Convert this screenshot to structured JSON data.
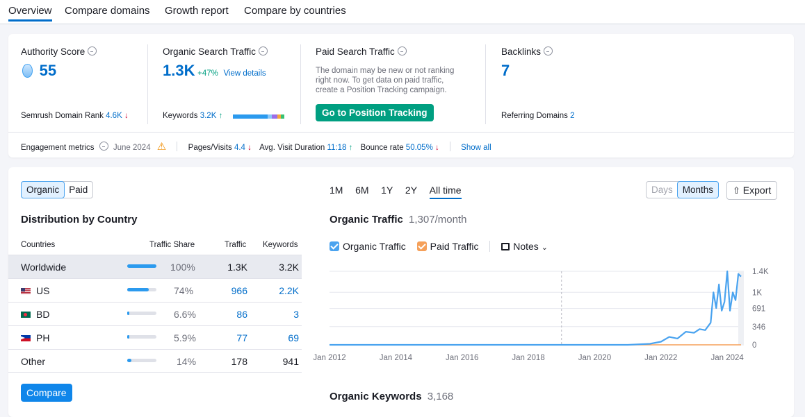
{
  "tabs": [
    "Overview",
    "Compare domains",
    "Growth report",
    "Compare by countries"
  ],
  "authority": {
    "label": "Authority Score",
    "value": "55",
    "rank_label": "Semrush Domain Rank",
    "rank_value": "4.6K",
    "rank_arrow": "↓"
  },
  "organic": {
    "label": "Organic Search Traffic",
    "value": "1.3K",
    "change": "+47%",
    "link": "View details",
    "keywords_label": "Keywords",
    "keywords_value": "3.2K",
    "keywords_arrow": "↑"
  },
  "paid": {
    "label": "Paid Search Traffic",
    "note_lines": [
      "The domain may be new or not ranking",
      "right now. To get data on paid traffic,",
      "create a Position Tracking campaign."
    ],
    "button": "Go to Position Tracking"
  },
  "backlinks": {
    "label": "Backlinks",
    "value": "7",
    "ref_label": "Referring Domains",
    "ref_value": "2"
  },
  "engagement": {
    "label": "Engagement metrics",
    "date": "June 2024",
    "pages_label": "Pages/Visits",
    "pages_value": "4.4",
    "pages_arrow": "↓",
    "duration_label": "Avg. Visit Duration",
    "duration_value": "11:18",
    "duration_arrow": "↑",
    "bounce_label": "Bounce rate",
    "bounce_value": "50.05%",
    "bounce_arrow": "↓",
    "show_all": "Show all"
  },
  "toggle": {
    "organic": "Organic",
    "paid": "Paid"
  },
  "distribution": {
    "title": "Distribution by Country",
    "headers": {
      "countries": "Countries",
      "share": "Traffic Share",
      "traffic": "Traffic",
      "keywords": "Keywords"
    },
    "rows": [
      {
        "name": "Worldwide",
        "share": "100%",
        "share_fraction": 1.0,
        "traffic": "1.3K",
        "keywords": "3.2K"
      },
      {
        "name": "US",
        "share": "74%",
        "share_fraction": 0.74,
        "traffic": "966",
        "keywords": "2.2K"
      },
      {
        "name": "BD",
        "share": "6.6%",
        "share_fraction": 0.066,
        "traffic": "86",
        "keywords": "3"
      },
      {
        "name": "PH",
        "share": "5.9%",
        "share_fraction": 0.059,
        "traffic": "77",
        "keywords": "69"
      },
      {
        "name": "Other",
        "share": "14%",
        "share_fraction": 0.14,
        "traffic": "178",
        "keywords": "941"
      }
    ],
    "compare_button": "Compare"
  },
  "periods": [
    "1M",
    "6M",
    "1Y",
    "2Y",
    "All time"
  ],
  "granularity": {
    "days": "Days",
    "months": "Months"
  },
  "export": "Export",
  "organic_traffic": {
    "title": "Organic Traffic",
    "value": "1,307/month"
  },
  "legend": {
    "organic": "Organic Traffic",
    "paid": "Paid Traffic",
    "notes": "Notes"
  },
  "organic_keywords": {
    "title": "Organic Keywords",
    "value": "3,168"
  },
  "colors": {
    "accent": "#006dca",
    "organic": "#4aa3ef",
    "paid": "#f5a05a",
    "green": "#009f81",
    "blue_btn": "#0f86ea"
  },
  "chart_data": {
    "type": "line",
    "title": "Organic Traffic",
    "x_ticks": [
      "Jan 2012",
      "Jan 2014",
      "Jan 2016",
      "Jan 2018",
      "Jan 2020",
      "Jan 2022",
      "Jan 2024"
    ],
    "y_ticks": [
      "0",
      "346",
      "691",
      "1K",
      "1.4K"
    ],
    "ylim": [
      0,
      1400
    ],
    "series": [
      {
        "name": "Organic Traffic",
        "color": "#4aa3ef",
        "x": [
          "2012-01",
          "2014-01",
          "2016-01",
          "2018-01",
          "2020-01",
          "2021-01",
          "2021-09",
          "2022-01",
          "2022-04",
          "2022-07",
          "2022-10",
          "2023-01",
          "2023-03",
          "2023-05",
          "2023-07",
          "2023-08",
          "2023-09",
          "2023-10",
          "2023-11",
          "2023-12",
          "2024-01",
          "2024-02",
          "2024-03",
          "2024-04",
          "2024-05",
          "2024-06"
        ],
        "values": [
          0,
          0,
          0,
          0,
          0,
          0,
          20,
          60,
          150,
          120,
          250,
          230,
          300,
          280,
          420,
          1000,
          700,
          1150,
          650,
          820,
          1400,
          650,
          1000,
          850,
          1350,
          1300
        ]
      },
      {
        "name": "Paid Traffic",
        "color": "#f5a05a",
        "x": [
          "2012-01",
          "2024-06"
        ],
        "values": [
          0,
          0
        ]
      }
    ]
  }
}
